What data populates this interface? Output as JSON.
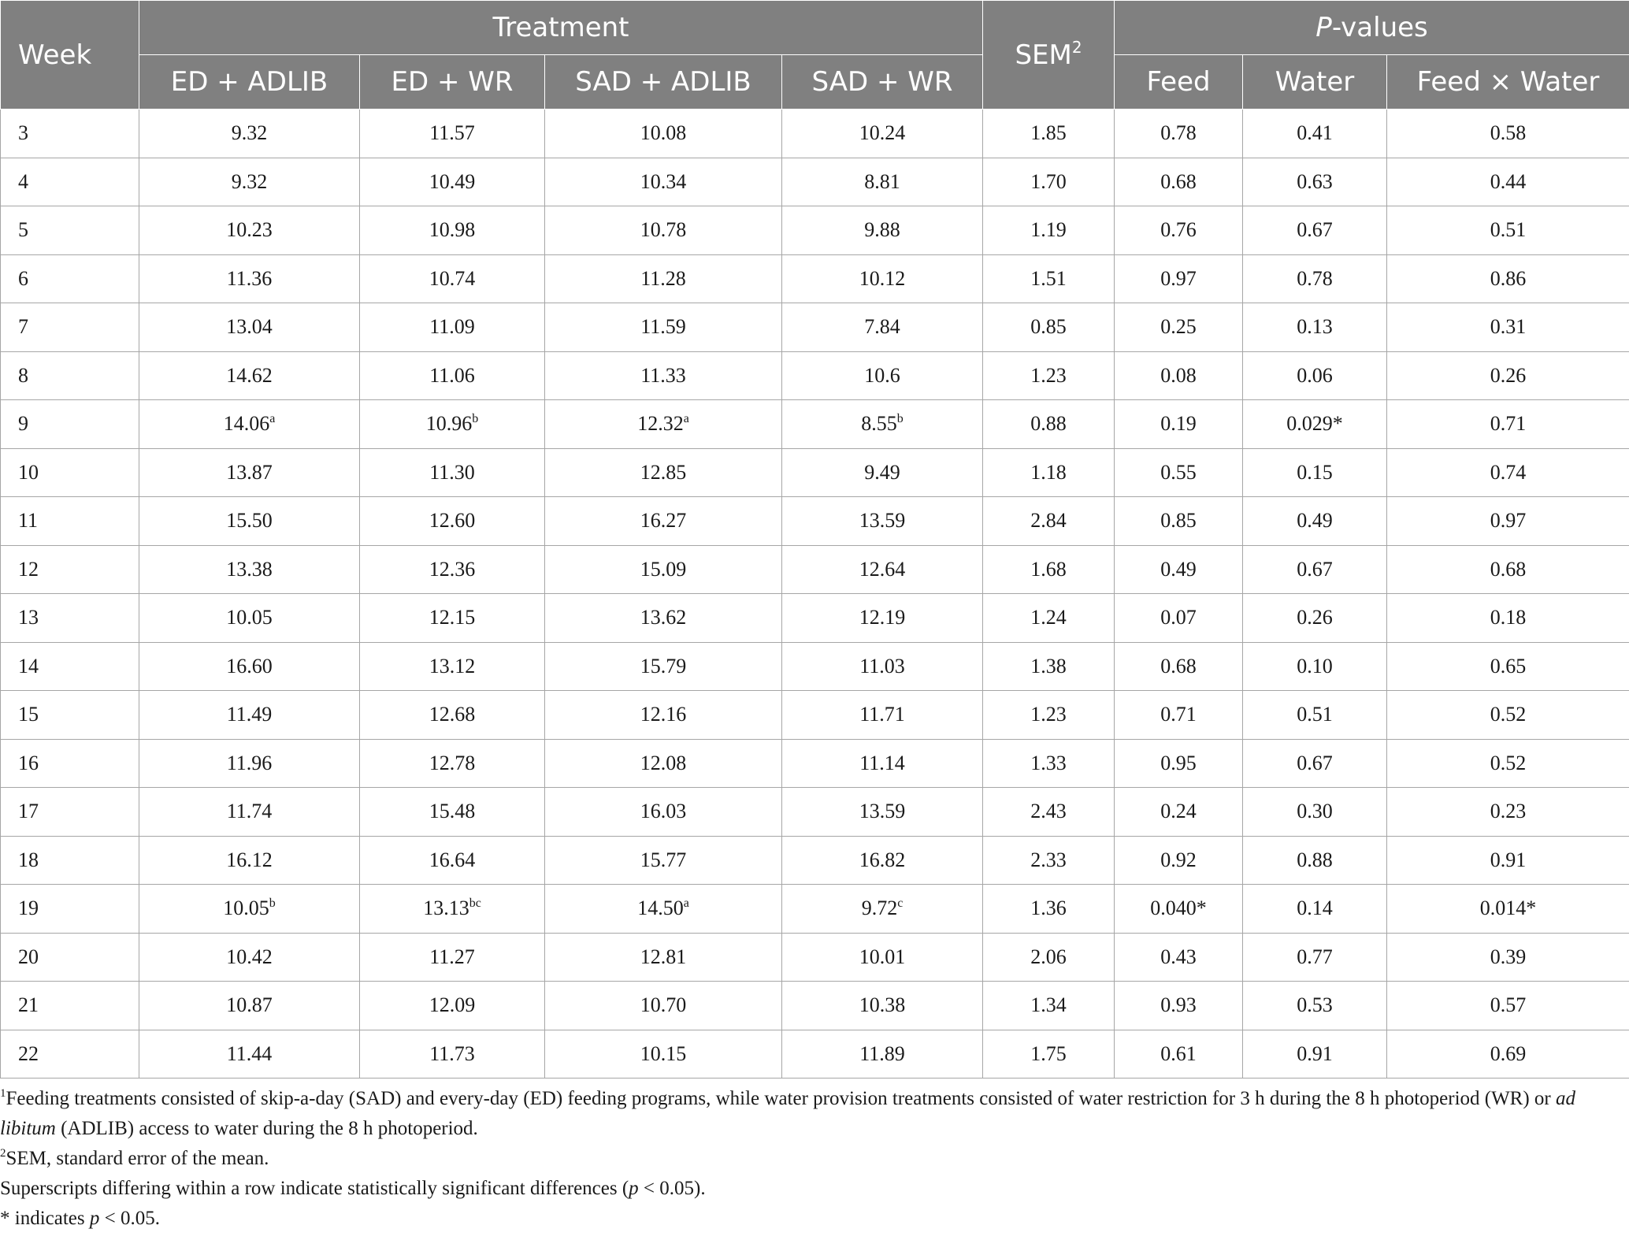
{
  "header": {
    "week": "Week",
    "treatment": "Treatment",
    "sem": "SEM",
    "sem_sup": "2",
    "pvalues_italic": "P",
    "pvalues_rest": "-values",
    "treatments": [
      "ED + ADLIB",
      "ED + WR",
      "SAD + ADLIB",
      "SAD + WR"
    ],
    "pcols": [
      "Feed",
      "Water",
      "Feed × Water"
    ]
  },
  "rows": [
    {
      "week": "3",
      "vals": [
        "9.32",
        "11.57",
        "10.08",
        "10.24"
      ],
      "sups": [
        "",
        "",
        "",
        ""
      ],
      "sem": "1.85",
      "p": [
        "0.78",
        "0.41",
        "0.58"
      ]
    },
    {
      "week": "4",
      "vals": [
        "9.32",
        "10.49",
        "10.34",
        "8.81"
      ],
      "sups": [
        "",
        "",
        "",
        ""
      ],
      "sem": "1.70",
      "p": [
        "0.68",
        "0.63",
        "0.44"
      ]
    },
    {
      "week": "5",
      "vals": [
        "10.23",
        "10.98",
        "10.78",
        "9.88"
      ],
      "sups": [
        "",
        "",
        "",
        ""
      ],
      "sem": "1.19",
      "p": [
        "0.76",
        "0.67",
        "0.51"
      ]
    },
    {
      "week": "6",
      "vals": [
        "11.36",
        "10.74",
        "11.28",
        "10.12"
      ],
      "sups": [
        "",
        "",
        "",
        ""
      ],
      "sem": "1.51",
      "p": [
        "0.97",
        "0.78",
        "0.86"
      ]
    },
    {
      "week": "7",
      "vals": [
        "13.04",
        "11.09",
        "11.59",
        "7.84"
      ],
      "sups": [
        "",
        "",
        "",
        ""
      ],
      "sem": "0.85",
      "p": [
        "0.25",
        "0.13",
        "0.31"
      ]
    },
    {
      "week": "8",
      "vals": [
        "14.62",
        "11.06",
        "11.33",
        "10.6"
      ],
      "sups": [
        "",
        "",
        "",
        ""
      ],
      "sem": "1.23",
      "p": [
        "0.08",
        "0.06",
        "0.26"
      ]
    },
    {
      "week": "9",
      "vals": [
        "14.06",
        "10.96",
        "12.32",
        "8.55"
      ],
      "sups": [
        "a",
        "b",
        "a",
        "b"
      ],
      "sem": "0.88",
      "p": [
        "0.19",
        "0.029*",
        "0.71"
      ]
    },
    {
      "week": "10",
      "vals": [
        "13.87",
        "11.30",
        "12.85",
        "9.49"
      ],
      "sups": [
        "",
        "",
        "",
        ""
      ],
      "sem": "1.18",
      "p": [
        "0.55",
        "0.15",
        "0.74"
      ]
    },
    {
      "week": "11",
      "vals": [
        "15.50",
        "12.60",
        "16.27",
        "13.59"
      ],
      "sups": [
        "",
        "",
        "",
        ""
      ],
      "sem": "2.84",
      "p": [
        "0.85",
        "0.49",
        "0.97"
      ]
    },
    {
      "week": "12",
      "vals": [
        "13.38",
        "12.36",
        "15.09",
        "12.64"
      ],
      "sups": [
        "",
        "",
        "",
        ""
      ],
      "sem": "1.68",
      "p": [
        "0.49",
        "0.67",
        "0.68"
      ]
    },
    {
      "week": "13",
      "vals": [
        "10.05",
        "12.15",
        "13.62",
        "12.19"
      ],
      "sups": [
        "",
        "",
        "",
        ""
      ],
      "sem": "1.24",
      "p": [
        "0.07",
        "0.26",
        "0.18"
      ]
    },
    {
      "week": "14",
      "vals": [
        "16.60",
        "13.12",
        "15.79",
        "11.03"
      ],
      "sups": [
        "",
        "",
        "",
        ""
      ],
      "sem": "1.38",
      "p": [
        "0.68",
        "0.10",
        "0.65"
      ]
    },
    {
      "week": "15",
      "vals": [
        "11.49",
        "12.68",
        "12.16",
        "11.71"
      ],
      "sups": [
        "",
        "",
        "",
        ""
      ],
      "sem": "1.23",
      "p": [
        "0.71",
        "0.51",
        "0.52"
      ]
    },
    {
      "week": "16",
      "vals": [
        "11.96",
        "12.78",
        "12.08",
        "11.14"
      ],
      "sups": [
        "",
        "",
        "",
        ""
      ],
      "sem": "1.33",
      "p": [
        "0.95",
        "0.67",
        "0.52"
      ]
    },
    {
      "week": "17",
      "vals": [
        "11.74",
        "15.48",
        "16.03",
        "13.59"
      ],
      "sups": [
        "",
        "",
        "",
        ""
      ],
      "sem": "2.43",
      "p": [
        "0.24",
        "0.30",
        "0.23"
      ]
    },
    {
      "week": "18",
      "vals": [
        "16.12",
        "16.64",
        "15.77",
        "16.82"
      ],
      "sups": [
        "",
        "",
        "",
        ""
      ],
      "sem": "2.33",
      "p": [
        "0.92",
        "0.88",
        "0.91"
      ]
    },
    {
      "week": "19",
      "vals": [
        "10.05",
        "13.13",
        "14.50",
        "9.72"
      ],
      "sups": [
        "b",
        "bc",
        "a",
        "c"
      ],
      "sem": "1.36",
      "p": [
        "0.040*",
        "0.14",
        "0.014*"
      ]
    },
    {
      "week": "20",
      "vals": [
        "10.42",
        "11.27",
        "12.81",
        "10.01"
      ],
      "sups": [
        "",
        "",
        "",
        ""
      ],
      "sem": "2.06",
      "p": [
        "0.43",
        "0.77",
        "0.39"
      ]
    },
    {
      "week": "21",
      "vals": [
        "10.87",
        "12.09",
        "10.70",
        "10.38"
      ],
      "sups": [
        "",
        "",
        "",
        ""
      ],
      "sem": "1.34",
      "p": [
        "0.93",
        "0.53",
        "0.57"
      ]
    },
    {
      "week": "22",
      "vals": [
        "11.44",
        "11.73",
        "10.15",
        "11.89"
      ],
      "sups": [
        "",
        "",
        "",
        ""
      ],
      "sem": "1.75",
      "p": [
        "0.61",
        "0.91",
        "0.69"
      ]
    }
  ],
  "notes": {
    "n1_sup": "1",
    "n1_a": "Feeding treatments consisted of skip-a-day (SAD) and every-day (ED) feeding programs, while water provision treatments consisted of water restriction for 3 h during the 8 h photoperiod (WR) or ",
    "n1_italic": "ad libitum",
    "n1_b": " (ADLIB) access to water during the 8 h photoperiod.",
    "n2_sup": "2",
    "n2": "SEM, standard error of the mean.",
    "n3_a": "Superscripts differing within a row indicate statistically significant differences (",
    "n3_italic": "p",
    "n3_b": " < 0.05).",
    "n4_a": "* indicates ",
    "n4_italic": "p",
    "n4_b": " < 0.05."
  }
}
